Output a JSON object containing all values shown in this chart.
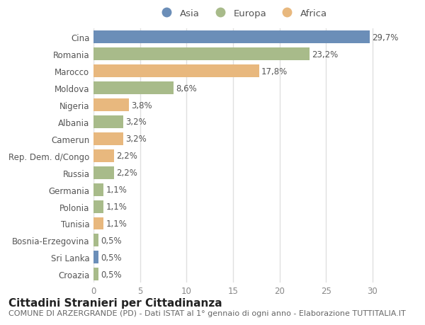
{
  "categories": [
    "Cina",
    "Romania",
    "Marocco",
    "Moldova",
    "Nigeria",
    "Albania",
    "Camerun",
    "Rep. Dem. d/Congo",
    "Russia",
    "Germania",
    "Polonia",
    "Tunisia",
    "Bosnia-Erzegovina",
    "Sri Lanka",
    "Croazia"
  ],
  "values": [
    29.7,
    23.2,
    17.8,
    8.6,
    3.8,
    3.2,
    3.2,
    2.2,
    2.2,
    1.1,
    1.1,
    1.1,
    0.5,
    0.5,
    0.5
  ],
  "labels": [
    "29,7%",
    "23,2%",
    "17,8%",
    "8,6%",
    "3,8%",
    "3,2%",
    "3,2%",
    "2,2%",
    "2,2%",
    "1,1%",
    "1,1%",
    "1,1%",
    "0,5%",
    "0,5%",
    "0,5%"
  ],
  "colors": [
    "#6b8eb8",
    "#a8bb8a",
    "#e8b87e",
    "#a8bb8a",
    "#e8b87e",
    "#a8bb8a",
    "#e8b87e",
    "#e8b87e",
    "#a8bb8a",
    "#a8bb8a",
    "#a8bb8a",
    "#e8b87e",
    "#a8bb8a",
    "#6b8eb8",
    "#a8bb8a"
  ],
  "legend": [
    {
      "label": "Asia",
      "color": "#6b8eb8"
    },
    {
      "label": "Europa",
      "color": "#a8bb8a"
    },
    {
      "label": "Africa",
      "color": "#e8b87e"
    }
  ],
  "xlim": [
    0,
    32
  ],
  "xticks": [
    0,
    5,
    10,
    15,
    20,
    25,
    30
  ],
  "title": "Cittadini Stranieri per Cittadinanza",
  "subtitle": "COMUNE DI ARZERGRANDE (PD) - Dati ISTAT al 1° gennaio di ogni anno - Elaborazione TUTTITALIA.IT",
  "fig_bg": "#ffffff",
  "plot_bg": "#ffffff",
  "grid_color": "#e0e0e0",
  "bar_height": 0.75,
  "title_fontsize": 11,
  "subtitle_fontsize": 8,
  "label_fontsize": 8.5,
  "tick_fontsize": 8.5,
  "legend_fontsize": 9.5
}
